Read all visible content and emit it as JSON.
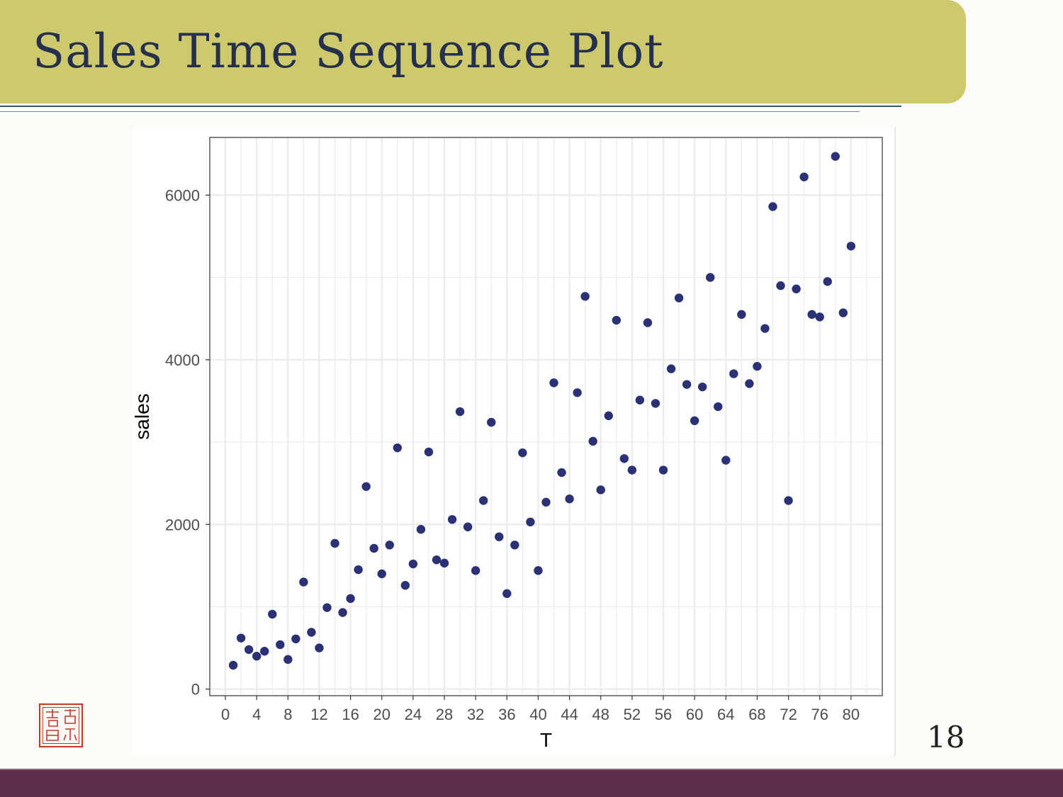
{
  "slide": {
    "title": "Sales Time Sequence Plot",
    "page_number": "18"
  },
  "colors": {
    "title_band": "#cdc96c",
    "title_text": "#24304e",
    "point": "#2b3175",
    "grid": "#ebebeb",
    "bottom_band": "#5e2f4b"
  },
  "chart_data": {
    "type": "scatter",
    "xlabel": "T",
    "ylabel": "sales",
    "xlim": [
      -2,
      84
    ],
    "ylim": [
      -80,
      6700
    ],
    "x_ticks": [
      0,
      4,
      8,
      12,
      16,
      20,
      24,
      28,
      32,
      36,
      40,
      44,
      48,
      52,
      56,
      60,
      64,
      68,
      72,
      76,
      80
    ],
    "y_ticks": [
      0,
      2000,
      4000,
      6000
    ],
    "grid": true,
    "legend": "none",
    "series": [
      {
        "marker": "circle",
        "points": [
          [
            1,
            290
          ],
          [
            2,
            620
          ],
          [
            3,
            480
          ],
          [
            4,
            400
          ],
          [
            5,
            460
          ],
          [
            6,
            910
          ],
          [
            7,
            540
          ],
          [
            8,
            360
          ],
          [
            9,
            610
          ],
          [
            10,
            1300
          ],
          [
            11,
            690
          ],
          [
            12,
            500
          ],
          [
            13,
            990
          ],
          [
            14,
            1770
          ],
          [
            15,
            930
          ],
          [
            16,
            1100
          ],
          [
            17,
            1450
          ],
          [
            18,
            2460
          ],
          [
            19,
            1710
          ],
          [
            20,
            1400
          ],
          [
            21,
            1750
          ],
          [
            22,
            2930
          ],
          [
            23,
            1260
          ],
          [
            24,
            1520
          ],
          [
            25,
            1940
          ],
          [
            26,
            2880
          ],
          [
            27,
            1570
          ],
          [
            28,
            1530
          ],
          [
            29,
            2060
          ],
          [
            30,
            3370
          ],
          [
            31,
            1970
          ],
          [
            32,
            1440
          ],
          [
            33,
            2290
          ],
          [
            34,
            3240
          ],
          [
            35,
            1850
          ],
          [
            36,
            1160
          ],
          [
            37,
            1750
          ],
          [
            38,
            2870
          ],
          [
            39,
            2030
          ],
          [
            40,
            1440
          ],
          [
            41,
            2270
          ],
          [
            42,
            3720
          ],
          [
            43,
            2630
          ],
          [
            44,
            2310
          ],
          [
            45,
            3600
          ],
          [
            46,
            4770
          ],
          [
            47,
            3010
          ],
          [
            48,
            2420
          ],
          [
            49,
            3320
          ],
          [
            50,
            4480
          ],
          [
            51,
            2800
          ],
          [
            52,
            2660
          ],
          [
            53,
            3510
          ],
          [
            54,
            4450
          ],
          [
            55,
            3470
          ],
          [
            56,
            2660
          ],
          [
            57,
            3890
          ],
          [
            58,
            4750
          ],
          [
            59,
            3700
          ],
          [
            60,
            3260
          ],
          [
            61,
            3670
          ],
          [
            62,
            5000
          ],
          [
            63,
            3430
          ],
          [
            64,
            2780
          ],
          [
            65,
            3830
          ],
          [
            66,
            4550
          ],
          [
            67,
            3710
          ],
          [
            68,
            3920
          ],
          [
            69,
            4380
          ],
          [
            70,
            5860
          ],
          [
            71,
            4900
          ],
          [
            72,
            2290
          ],
          [
            73,
            4860
          ],
          [
            74,
            6220
          ],
          [
            75,
            4550
          ],
          [
            76,
            4520
          ],
          [
            77,
            4950
          ],
          [
            78,
            6470
          ],
          [
            79,
            4570
          ],
          [
            80,
            5380
          ]
        ]
      }
    ]
  }
}
